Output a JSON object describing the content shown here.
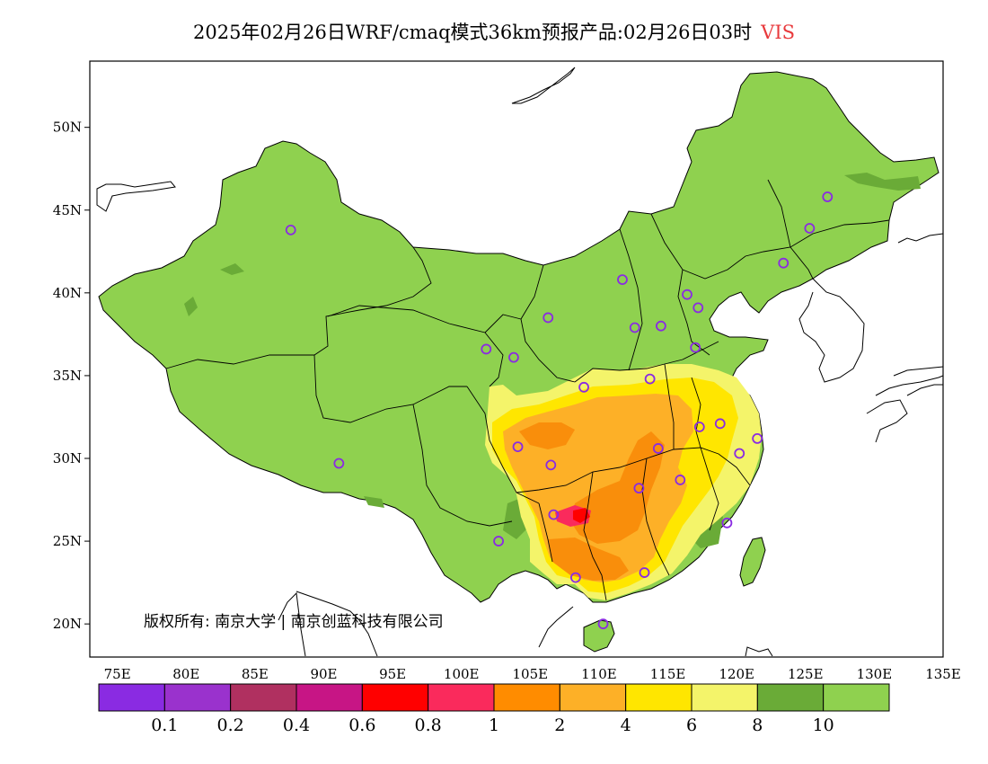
{
  "title": {
    "main": "2025年02月26日WRF/cmaq模式36km预报产品:02月26日03时",
    "variable": "VIS",
    "variable_color": "#e8393c"
  },
  "map": {
    "lon_range": [
      73,
      135
    ],
    "lat_range": [
      18,
      54
    ],
    "lat_ticks": [
      {
        "value": 20,
        "label": "20N"
      },
      {
        "value": 25,
        "label": "25N"
      },
      {
        "value": 30,
        "label": "30N"
      },
      {
        "value": 35,
        "label": "35N"
      },
      {
        "value": 40,
        "label": "40N"
      },
      {
        "value": 45,
        "label": "45N"
      },
      {
        "value": 50,
        "label": "50N"
      }
    ],
    "lon_ticks": [
      {
        "value": 75,
        "label": "75E"
      },
      {
        "value": 80,
        "label": "80E"
      },
      {
        "value": 85,
        "label": "85E"
      },
      {
        "value": 90,
        "label": "90E"
      },
      {
        "value": 95,
        "label": "95E"
      },
      {
        "value": 100,
        "label": "100E"
      },
      {
        "value": 105,
        "label": "105E"
      },
      {
        "value": 110,
        "label": "110E"
      },
      {
        "value": 115,
        "label": "115E"
      },
      {
        "value": 120,
        "label": "120E"
      },
      {
        "value": 125,
        "label": "125E"
      },
      {
        "value": 130,
        "label": "130E"
      },
      {
        "value": 135,
        "label": "135E"
      }
    ],
    "stations": [
      [
        87.6,
        43.8
      ],
      [
        91.1,
        29.7
      ],
      [
        101.8,
        36.6
      ],
      [
        103.8,
        36.1
      ],
      [
        106.3,
        38.5
      ],
      [
        111.7,
        40.8
      ],
      [
        112.6,
        37.9
      ],
      [
        114.5,
        38.0
      ],
      [
        116.4,
        39.9
      ],
      [
        117.2,
        39.1
      ],
      [
        117.0,
        36.7
      ],
      [
        113.7,
        34.8
      ],
      [
        108.9,
        34.3
      ],
      [
        104.1,
        30.7
      ],
      [
        106.5,
        29.6
      ],
      [
        106.7,
        26.6
      ],
      [
        102.7,
        25.0
      ],
      [
        108.3,
        22.8
      ],
      [
        113.3,
        23.1
      ],
      [
        110.3,
        20.0
      ],
      [
        112.9,
        28.2
      ],
      [
        115.9,
        28.7
      ],
      [
        114.3,
        30.6
      ],
      [
        117.3,
        31.9
      ],
      [
        118.8,
        32.1
      ],
      [
        120.2,
        30.3
      ],
      [
        121.5,
        31.2
      ],
      [
        119.3,
        26.1
      ],
      [
        123.4,
        41.8
      ],
      [
        125.3,
        43.9
      ],
      [
        126.6,
        45.8
      ]
    ],
    "copyright": "版权所有: 南京大学 | 南京创蓝科技有限公司"
  },
  "colors": {
    "land": "#8fd14f",
    "dark_green": "#6aab37",
    "light_yellow": "#f4f46a",
    "yellow": "#ffe600",
    "light_orange": "#fdb027",
    "orange": "#f98e0b",
    "pink": "#fa2a5c",
    "red": "#ff0000",
    "boundary": "#000000",
    "station_marker": "#8a2be2"
  },
  "legend": {
    "colors": [
      "#8a2be2",
      "#9a32cd",
      "#b03060",
      "#c71585",
      "#ff0000",
      "#fa2a5c",
      "#ff8c00",
      "#fdb027",
      "#ffe600",
      "#f4f46a",
      "#6aab37",
      "#8fd14f"
    ],
    "labels": [
      "0.1",
      "0.2",
      "0.4",
      "0.6",
      "0.8",
      "1",
      "2",
      "4",
      "6",
      "8",
      "10"
    ]
  }
}
